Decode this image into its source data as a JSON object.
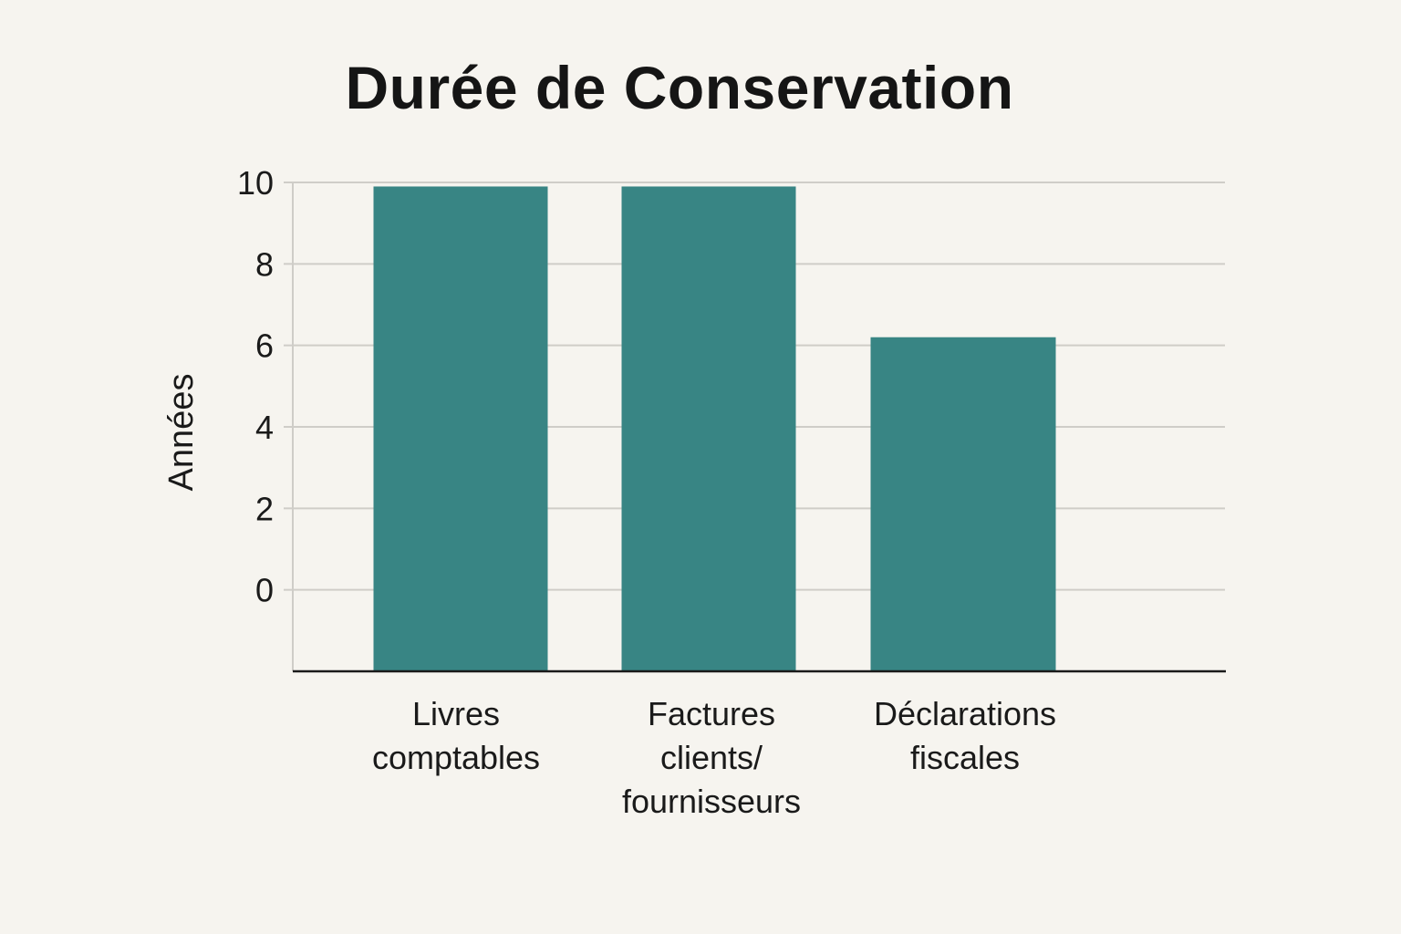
{
  "chart_data": {
    "type": "bar",
    "title": "Durée de Conservation",
    "xlabel": "",
    "ylabel": "Années",
    "categories": [
      [
        "Livres",
        "comptables"
      ],
      [
        "Factures",
        "clients/",
        "fournisseurs"
      ],
      [
        "Déclarations",
        "fiscales"
      ]
    ],
    "values": [
      9.9,
      9.9,
      6.2
    ],
    "yticks": [
      0,
      2,
      4,
      6,
      8,
      10
    ],
    "ylim": [
      -2,
      10
    ],
    "grid": true,
    "legend": "none",
    "colors": {
      "bar": "#388584",
      "grid": "#cfcdc8",
      "axis": "#1a1a1a",
      "background": "#f6f4ef"
    }
  }
}
